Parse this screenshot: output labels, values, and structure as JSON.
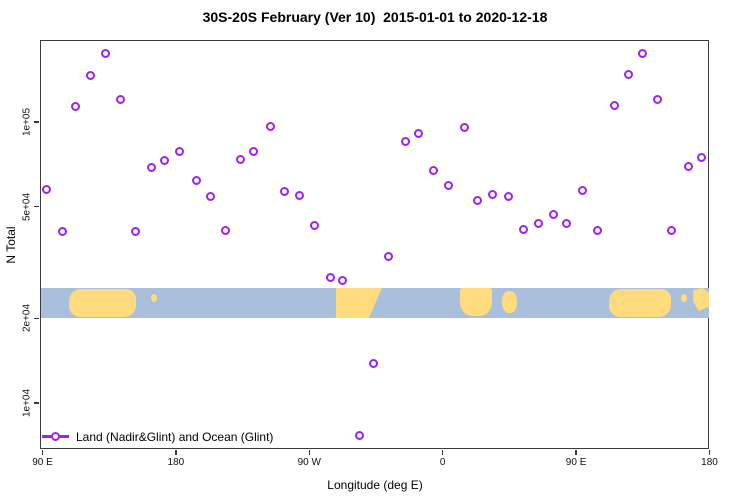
{
  "header": {
    "title": "30S-20S February (Ver 10)  2015-01-01 to 2020-12-18"
  },
  "chart_data": {
    "type": "scatter",
    "title": "30S-20S February (Ver 10)  2015-01-01 to 2020-12-18",
    "xlabel": "Longitude (deg E)",
    "ylabel": "N Total",
    "grid": false,
    "legend_position": "bottom-left",
    "x_axis": {
      "description": "Longitude unwrapped eastward from 90E through 180, 90W, 0, 90E to 180",
      "range": [
        90,
        540
      ],
      "ticks": [
        {
          "lon": 90,
          "label": "90 E"
        },
        {
          "lon": 180,
          "label": "180"
        },
        {
          "lon": 270,
          "label": "90 W"
        },
        {
          "lon": 360,
          "label": "0"
        },
        {
          "lon": 450,
          "label": "90 E"
        },
        {
          "lon": 540,
          "label": "180"
        }
      ]
    },
    "y_axis": {
      "scale": "log",
      "range_approx": [
        6000,
        220000
      ],
      "ticks": [
        {
          "value": 100000,
          "label": "1e+05"
        },
        {
          "value": 50000,
          "label": "5e+04"
        },
        {
          "value": 20000,
          "label": "2e+04"
        },
        {
          "value": 10000,
          "label": "1e+04"
        }
      ]
    },
    "series": [
      {
        "name": "Land (Nadir&Glint) and Ocean (Glint)",
        "marker": "open-circle",
        "color": "#A020F0",
        "points_lon_n": [
          [
            93,
            57300
          ],
          [
            104,
            40700
          ],
          [
            113,
            113000
          ],
          [
            123,
            146000
          ],
          [
            133,
            175000
          ],
          [
            143,
            120000
          ],
          [
            153,
            40700
          ],
          [
            164,
            68800
          ],
          [
            173,
            72700
          ],
          [
            183,
            78400
          ],
          [
            194,
            61700
          ],
          [
            204,
            54000
          ],
          [
            214,
            41000
          ],
          [
            224,
            73300
          ],
          [
            233,
            78000
          ],
          [
            244,
            95800
          ],
          [
            254,
            56500
          ],
          [
            264,
            54700
          ],
          [
            274,
            42700
          ],
          [
            285,
            27900
          ],
          [
            293,
            27200
          ],
          [
            304,
            7630
          ],
          [
            314,
            13700
          ],
          [
            324,
            33000
          ],
          [
            335,
            85100
          ],
          [
            344,
            90400
          ],
          [
            354,
            66800
          ],
          [
            364,
            58900
          ],
          [
            375,
            95000
          ],
          [
            384,
            52500
          ],
          [
            394,
            55000
          ],
          [
            405,
            54200
          ],
          [
            415,
            41300
          ],
          [
            425,
            43400
          ],
          [
            435,
            46700
          ],
          [
            444,
            43400
          ],
          [
            455,
            56900
          ],
          [
            465,
            40900
          ],
          [
            476,
            114000
          ],
          [
            486,
            147000
          ],
          [
            495,
            174000
          ],
          [
            505,
            120000
          ],
          [
            515,
            40900
          ],
          [
            526,
            69000
          ],
          [
            535,
            74300
          ]
        ]
      }
    ],
    "map_band": {
      "description": "30S-20S latitude strip map across plot",
      "ocean_color": "#A9BFDC",
      "land_color": "#FFDB7E",
      "n_value_range": [
        20000,
        25700
      ],
      "land_segments": [
        {
          "name": "australia-west-pass",
          "lon1": 108,
          "lon2": 153,
          "kind": "block"
        },
        {
          "name": "new-caledonia-1",
          "lon1": 163,
          "lon2": 167,
          "kind": "speck"
        },
        {
          "name": "south-america",
          "lon1": 288,
          "lon2": 319,
          "kind": "taper"
        },
        {
          "name": "africa",
          "lon1": 372,
          "lon2": 393,
          "kind": "round-bottom"
        },
        {
          "name": "madagascar",
          "lon1": 400,
          "lon2": 410,
          "kind": "blob"
        },
        {
          "name": "australia-east-pass",
          "lon1": 472,
          "lon2": 514,
          "kind": "block"
        },
        {
          "name": "new-caledonia-2",
          "lon1": 521,
          "lon2": 525,
          "kind": "speck"
        },
        {
          "name": "fiji-edge",
          "lon1": 529,
          "lon2": 541,
          "kind": "wedge"
        }
      ]
    },
    "legend": {
      "label": "Land (Nadir&Glint) and Ocean (Glint)"
    }
  }
}
